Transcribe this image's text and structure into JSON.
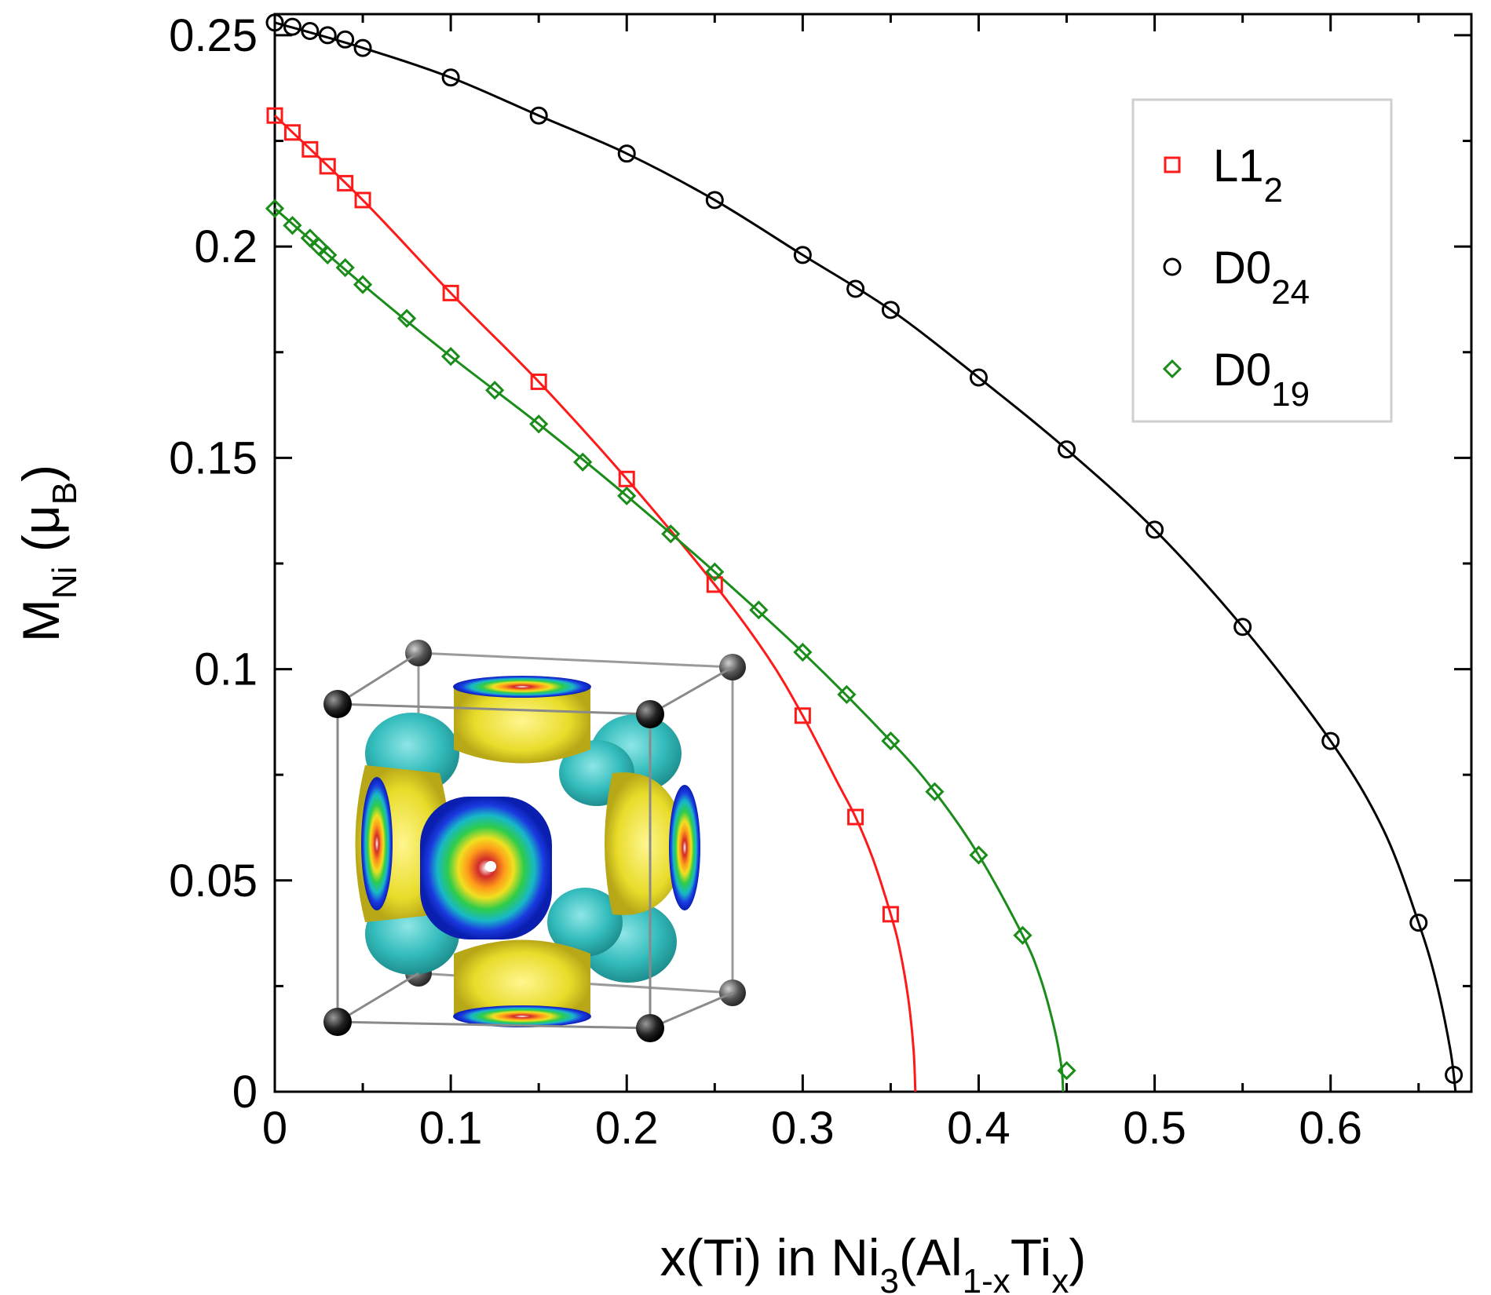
{
  "chart_data": {
    "type": "line",
    "title": "",
    "xlabel": {
      "base": "x(Ti) in Ni",
      "sub1": "3",
      "mid": "(Al",
      "sub2": "1-x",
      "mid2": "Ti",
      "sub3": "x",
      "end": ")"
    },
    "ylabel": {
      "base": "M",
      "sub": "Ni",
      "unit_open": " (μ",
      "unit_sub": "B",
      "unit_close": ")"
    },
    "xlim": [
      0,
      0.68
    ],
    "ylim": [
      0,
      0.255
    ],
    "xticks": [
      0,
      0.1,
      0.2,
      0.3,
      0.4,
      0.5,
      0.6
    ],
    "xtick_labels": [
      "0",
      "0.1",
      "0.2",
      "0.3",
      "0.4",
      "0.5",
      "0.6"
    ],
    "yticks": [
      0,
      0.05,
      0.1,
      0.15,
      0.2,
      0.25
    ],
    "ytick_labels": [
      "0",
      "0.05",
      "0.1",
      "0.15",
      "0.2",
      "0.25"
    ],
    "grid": false,
    "legend_position": "top-right",
    "series": [
      {
        "key": "l12",
        "name": "L1",
        "name_sub": "2",
        "marker": "square",
        "color": "#ff1a1a",
        "points": [
          [
            0,
            0.231
          ],
          [
            0.01,
            0.227
          ],
          [
            0.02,
            0.223
          ],
          [
            0.03,
            0.219
          ],
          [
            0.04,
            0.215
          ],
          [
            0.05,
            0.211
          ],
          [
            0.1,
            0.189
          ],
          [
            0.15,
            0.168
          ],
          [
            0.2,
            0.145
          ],
          [
            0.25,
            0.12
          ],
          [
            0.3,
            0.089
          ],
          [
            0.33,
            0.065
          ],
          [
            0.35,
            0.042
          ]
        ],
        "curve": [
          [
            0,
            0.231
          ],
          [
            0.05,
            0.211
          ],
          [
            0.1,
            0.189
          ],
          [
            0.15,
            0.168
          ],
          [
            0.2,
            0.145
          ],
          [
            0.25,
            0.12
          ],
          [
            0.28,
            0.103
          ],
          [
            0.3,
            0.089
          ],
          [
            0.32,
            0.073
          ],
          [
            0.33,
            0.065
          ],
          [
            0.34,
            0.055
          ],
          [
            0.35,
            0.042
          ],
          [
            0.355,
            0.034
          ],
          [
            0.36,
            0.022
          ],
          [
            0.363,
            0.01
          ],
          [
            0.364,
            0
          ]
        ]
      },
      {
        "key": "d024",
        "name": "D0",
        "name_sub": "24",
        "marker": "circle",
        "color": "#000000",
        "points": [
          [
            0,
            0.253
          ],
          [
            0.01,
            0.252
          ],
          [
            0.02,
            0.251
          ],
          [
            0.03,
            0.25
          ],
          [
            0.04,
            0.249
          ],
          [
            0.05,
            0.247
          ],
          [
            0.1,
            0.24
          ],
          [
            0.15,
            0.231
          ],
          [
            0.2,
            0.222
          ],
          [
            0.25,
            0.211
          ],
          [
            0.3,
            0.198
          ],
          [
            0.33,
            0.19
          ],
          [
            0.35,
            0.185
          ],
          [
            0.4,
            0.169
          ],
          [
            0.45,
            0.152
          ],
          [
            0.5,
            0.133
          ],
          [
            0.55,
            0.11
          ],
          [
            0.6,
            0.083
          ],
          [
            0.65,
            0.04
          ],
          [
            0.67,
            0.004
          ]
        ],
        "curve": [
          [
            0,
            0.253
          ],
          [
            0.05,
            0.247
          ],
          [
            0.1,
            0.24
          ],
          [
            0.15,
            0.231
          ],
          [
            0.2,
            0.222
          ],
          [
            0.25,
            0.211
          ],
          [
            0.3,
            0.198
          ],
          [
            0.35,
            0.185
          ],
          [
            0.4,
            0.169
          ],
          [
            0.45,
            0.152
          ],
          [
            0.5,
            0.133
          ],
          [
            0.55,
            0.11
          ],
          [
            0.6,
            0.083
          ],
          [
            0.63,
            0.062
          ],
          [
            0.65,
            0.04
          ],
          [
            0.66,
            0.026
          ],
          [
            0.668,
            0.01
          ],
          [
            0.671,
            0
          ]
        ]
      },
      {
        "key": "d019",
        "name": "D0",
        "name_sub": "19",
        "marker": "diamond",
        "color": "#1a8c1a",
        "points": [
          [
            0,
            0.209
          ],
          [
            0.01,
            0.205
          ],
          [
            0.02,
            0.202
          ],
          [
            0.025,
            0.2
          ],
          [
            0.03,
            0.198
          ],
          [
            0.04,
            0.195
          ],
          [
            0.05,
            0.191
          ],
          [
            0.075,
            0.183
          ],
          [
            0.1,
            0.174
          ],
          [
            0.125,
            0.166
          ],
          [
            0.15,
            0.158
          ],
          [
            0.175,
            0.149
          ],
          [
            0.2,
            0.141
          ],
          [
            0.225,
            0.132
          ],
          [
            0.25,
            0.123
          ],
          [
            0.275,
            0.114
          ],
          [
            0.3,
            0.104
          ],
          [
            0.325,
            0.094
          ],
          [
            0.35,
            0.083
          ],
          [
            0.375,
            0.071
          ],
          [
            0.4,
            0.056
          ],
          [
            0.425,
            0.037
          ],
          [
            0.45,
            0.005
          ]
        ],
        "curve": [
          [
            0,
            0.209
          ],
          [
            0.05,
            0.191
          ],
          [
            0.1,
            0.174
          ],
          [
            0.15,
            0.158
          ],
          [
            0.2,
            0.141
          ],
          [
            0.25,
            0.123
          ],
          [
            0.3,
            0.104
          ],
          [
            0.35,
            0.083
          ],
          [
            0.375,
            0.071
          ],
          [
            0.4,
            0.056
          ],
          [
            0.425,
            0.037
          ],
          [
            0.435,
            0.027
          ],
          [
            0.443,
            0.015
          ],
          [
            0.447,
            0.006
          ],
          [
            0.448,
            0
          ]
        ]
      }
    ],
    "inset": {
      "description_free": true,
      "colors": {
        "cage": "#8a8a8a",
        "atom": "#111111",
        "lobe": "#e8dc2a",
        "blob": "#2fbcbc",
        "ring": "#0a2fd0"
      }
    }
  }
}
